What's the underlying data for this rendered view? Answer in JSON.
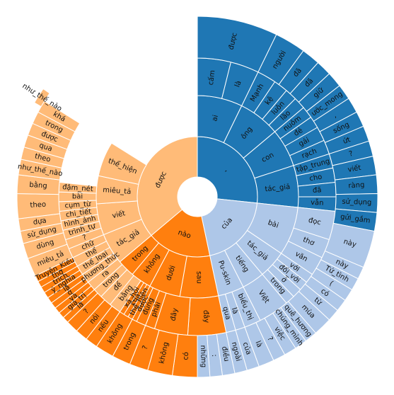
{
  "chart_data": {
    "type": "sunburst",
    "start_angle_deg": 0,
    "direction": "clockwise",
    "colors": {
      "blue": "#1f77b4",
      "light_blue": "#aec7e8",
      "orange": "#ff7f0e",
      "light_orange": "#ffbb78"
    },
    "rings": [
      [
        {
          "label": ",",
          "value": 96,
          "color": "blue"
        },
        {
          "label": "của",
          "value": 72,
          "color": "light_blue"
        },
        {
          "label": "nào",
          "value": 62,
          "color": "orange"
        },
        {
          "label": "được",
          "value": 130,
          "color": "light_orange"
        }
      ],
      [
        {
          "label": "ai",
          "value": 26,
          "color": "blue"
        },
        {
          "label": "ông",
          "value": 24,
          "color": "blue"
        },
        {
          "label": "con",
          "value": 22,
          "color": "blue"
        },
        {
          "label": "tác_giả",
          "value": 24,
          "color": "blue"
        },
        {
          "label": "bài",
          "value": 28,
          "color": "light_blue"
        },
        {
          "label": "tác_giả",
          "value": 16,
          "color": "light_blue"
        },
        {
          "label": "tiếng",
          "value": 13,
          "color": "light_blue"
        },
        {
          "label": "Pu-skin",
          "value": 15,
          "color": "light_blue"
        },
        {
          "label": "sau",
          "value": 22,
          "color": "orange"
        },
        {
          "label": "dưới",
          "value": 18,
          "color": "orange"
        },
        {
          "label": "không",
          "value": 12,
          "color": "orange"
        },
        {
          "label": "trong",
          "value": 10,
          "color": "orange"
        },
        {
          "label": "tác_giả",
          "value": 18,
          "color": "light_orange"
        },
        {
          "label": "viết",
          "value": 18,
          "color": "light_orange"
        },
        {
          "label": "miêu_tả",
          "value": 16,
          "color": "light_orange"
        },
        {
          "label": "thể_hiện",
          "value": 20,
          "color": "light_orange"
        }
      ],
      [
        {
          "label": "cấm",
          "value": 14,
          "color": "blue"
        },
        {
          "label": "là",
          "value": 12,
          "color": "blue"
        },
        {
          "label": "Mạnh",
          "value": 8,
          "color": "blue"
        },
        {
          "label": "kệ",
          "value": 6,
          "color": "blue"
        },
        {
          "label": "luôn",
          "value": 5,
          "color": "blue"
        },
        {
          "label": "lão",
          "value": 5,
          "color": "blue"
        },
        {
          "label": "nuôm",
          "value": 5,
          "color": "blue"
        },
        {
          "label": "đẻ",
          "value": 5,
          "color": "blue"
        },
        {
          "label": "gái",
          "value": 6,
          "color": "blue"
        },
        {
          "label": "rạch",
          "value": 6,
          "color": "blue"
        },
        {
          "label": "tập_trung",
          "value": 6,
          "color": "blue"
        },
        {
          "label": "cho",
          "value": 6,
          "color": "blue"
        },
        {
          "label": "đã",
          "value": 6,
          "color": "blue"
        },
        {
          "label": "vẫn",
          "value": 6,
          "color": "blue"
        },
        {
          "label": "đọc",
          "value": 12,
          "color": "light_blue"
        },
        {
          "label": "thơ",
          "value": 8,
          "color": "light_blue"
        },
        {
          "label": "văn",
          "value": 8,
          "color": "light_blue"
        },
        {
          "label": "với",
          "value": 4,
          "color": "light_blue"
        },
        {
          "label": "đối_với",
          "value": 4,
          "color": "light_blue"
        },
        {
          "label": "ở",
          "value": 4,
          "color": "light_blue"
        },
        {
          "label": "trong",
          "value": 4,
          "color": "light_blue"
        },
        {
          "label": "Việt",
          "value": 13,
          "color": "light_blue"
        },
        {
          "label": "biểu_thị",
          "value": 7,
          "color": "light_blue"
        },
        {
          "label": "là",
          "value": 4,
          "color": "light_blue"
        },
        {
          "label": "qua",
          "value": 4,
          "color": "light_blue"
        },
        {
          "label": "đây",
          "value": 16,
          "color": "orange"
        },
        {
          "label": "đây",
          "value": 14,
          "color": "orange"
        },
        {
          "label": "phải",
          "value": 4,
          "color": "orange"
        },
        {
          "label": "đúng",
          "value": 4,
          "color": "orange"
        },
        {
          "label": "được",
          "value": 2,
          "color": "orange"
        },
        {
          "label": "thể_hiện",
          "value": 2,
          "color": "orange"
        },
        {
          "label": "của",
          "value": 2,
          "color": "orange"
        },
        {
          "label": "xã_hội",
          "value": 2,
          "color": "orange"
        },
        {
          "label": "bằng",
          "value": 5,
          "color": "light_orange"
        },
        {
          "label": "để",
          "value": 5,
          "color": "light_orange"
        },
        {
          "label": "trong",
          "value": 4,
          "color": "light_orange"
        },
        {
          "label": "ra",
          "value": 4,
          "color": "light_orange"
        },
        {
          "label": "phương_thức",
          "value": 4,
          "color": "light_orange"
        },
        {
          "label": "thể_loại",
          "value": 4,
          "color": "light_orange"
        },
        {
          "label": "thể",
          "value": 4,
          "color": "light_orange"
        },
        {
          "label": "chữ",
          "value": 4,
          "color": "light_orange"
        },
        {
          "label": "?",
          "value": 4,
          "color": "light_orange"
        },
        {
          "label": "trình_tự",
          "value": 4,
          "color": "light_orange"
        },
        {
          "label": "hình_ảnh",
          "value": 4,
          "color": "light_orange"
        },
        {
          "label": "chi_tiết",
          "value": 4,
          "color": "light_orange"
        },
        {
          "label": "cụm_từ",
          "value": 4,
          "color": "light_orange"
        },
        {
          "label": "bài",
          "value": 4,
          "color": "light_orange"
        },
        {
          "label": "đậm_nét",
          "value": 4,
          "color": "light_orange"
        }
      ],
      [
        {
          "label": "được",
          "value": 26,
          "color": "blue"
        },
        {
          "label": "người",
          "value": 10,
          "color": "blue"
        },
        {
          "label": "đã",
          "value": 6,
          "color": "blue"
        },
        {
          "label": "đã",
          "value": 5,
          "color": "blue"
        },
        {
          "label": "giữ",
          "value": 5,
          "color": "blue"
        },
        {
          "label": "ước_mong",
          "value": 5,
          "color": "blue"
        },
        {
          "label": ",",
          "value": 5,
          "color": "blue"
        },
        {
          "label": "sống",
          "value": 5,
          "color": "blue"
        },
        {
          "label": "ứt",
          "value": 5,
          "color": "blue"
        },
        {
          "label": "?",
          "value": 5,
          "color": "blue"
        },
        {
          "label": "viết",
          "value": 6,
          "color": "blue"
        },
        {
          "label": "ràng",
          "value": 6,
          "color": "blue"
        },
        {
          "label": "sử_dụng",
          "value": 6,
          "color": "blue"
        },
        {
          "label": "gửi_gắm",
          "value": 6,
          "color": "blue"
        },
        {
          "label": "này",
          "value": 12,
          "color": "light_blue"
        },
        {
          "label": "này",
          "value": 4,
          "color": "light_blue"
        },
        {
          "label": "Tứ_tình",
          "value": 4,
          "color": "light_blue"
        },
        {
          "label": "(",
          "value": 4,
          "color": "light_blue"
        },
        {
          "label": "có",
          "value": 4,
          "color": "light_blue"
        },
        {
          "label": "từ",
          "value": 4,
          "color": "light_blue"
        },
        {
          "label": "mùa",
          "value": 6,
          "color": "light_blue"
        },
        {
          "label": "quê_hương",
          "value": 4,
          "color": "light_blue"
        },
        {
          "label": "chúng_mình",
          "value": 4,
          "color": "light_blue"
        },
        {
          "label": "việc",
          "value": 4,
          "color": "light_blue"
        },
        {
          "label": "?",
          "value": 4,
          "color": "light_blue"
        },
        {
          "label": "là",
          "value": 5,
          "color": "light_blue"
        },
        {
          "label": "của",
          "value": 4,
          "color": "light_blue"
        },
        {
          "label": "ngoài",
          "value": 4,
          "color": "light_blue"
        },
        {
          "label": "điều",
          "value": 4,
          "color": "light_blue"
        },
        {
          "label": ":",
          "value": 4,
          "color": "light_blue"
        },
        {
          "label": "những",
          "value": 4,
          "color": "light_blue"
        },
        {
          "label": "có",
          "value": 8,
          "color": "orange"
        },
        {
          "label": "không",
          "value": 8,
          "color": "orange"
        },
        {
          "label": "?",
          "value": 6,
          "color": "orange"
        },
        {
          "label": "trong",
          "value": 6,
          "color": "orange"
        },
        {
          "label": "không",
          "value": 6,
          "color": "orange"
        },
        {
          "label": "nếu",
          "value": 4,
          "color": "orange"
        },
        {
          "label": "nói",
          "value": 4,
          "color": "orange"
        },
        {
          "label": "?",
          "value": 4,
          "color": "orange"
        },
        {
          "label": "là",
          "value": 2,
          "color": "orange"
        },
        {
          "label": "giá_trị",
          "value": 2,
          "color": "orange"
        },
        {
          "label": "và",
          "value": 2,
          "color": "orange"
        },
        {
          "label": "ở",
          "value": 2,
          "color": "orange"
        },
        {
          "label": "là",
          "value": 2,
          "color": "orange"
        },
        {
          "label": "ý_nghĩa",
          "value": 2,
          "color": "orange"
        },
        {
          "label": "trích",
          "value": 2,
          "color": "orange"
        },
        {
          "label": "thơ",
          "value": 2,
          "color": "orange"
        },
        {
          "label": "Truyện_Kiều",
          "value": 2,
          "color": "orange"
        },
        {
          "label": "miêu_tả",
          "value": 6,
          "color": "light_orange"
        },
        {
          "label": "dùng",
          "value": 5,
          "color": "light_orange"
        },
        {
          "label": "sử_dụng",
          "value": 4,
          "color": "light_orange"
        },
        {
          "label": "dựa",
          "value": 4,
          "color": "light_orange"
        },
        {
          "label": "theo",
          "value": 8,
          "color": "light_orange"
        },
        {
          "label": "bằng",
          "value": 6,
          "color": "light_orange"
        },
        {
          "label": "như_thế_nào",
          "value": 5,
          "color": "light_orange"
        },
        {
          "label": "theo",
          "value": 4,
          "color": "light_orange"
        },
        {
          "label": "qua",
          "value": 4,
          "color": "light_orange"
        },
        {
          "label": "được",
          "value": 4,
          "color": "light_orange"
        },
        {
          "label": "trong",
          "value": 4,
          "color": "light_orange"
        },
        {
          "label": "khá",
          "value": 4,
          "color": "light_orange"
        }
      ],
      [
        {
          "label": "như_thế_nào",
          "value": 5,
          "color": "light_orange"
        }
      ]
    ]
  }
}
